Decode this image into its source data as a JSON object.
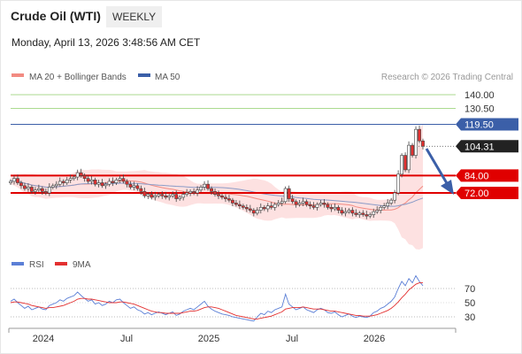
{
  "header": {
    "title": "Crude Oil (WTI)",
    "period": "WEEKLY",
    "timestamp": "Monday, April 13, 2026 3:48:56 AM CET"
  },
  "legend": {
    "items": [
      {
        "name": "MA 20 + Bollinger Bands",
        "color": "#f28b82"
      },
      {
        "name": "MA 50",
        "color": "#3b5fa8"
      }
    ],
    "credit": "Research © 2026 Trading Central"
  },
  "rsi_legend": {
    "items": [
      {
        "name": "RSI",
        "color": "#5b7fd6"
      },
      {
        "name": "9MA",
        "color": "#e33030"
      }
    ]
  },
  "colors": {
    "up_candle": "#ffffff",
    "down_candle": "#e33030",
    "candle_outline": "#444444",
    "bollinger_fill": "#fde1e1",
    "ma20": "#f28b82",
    "ma50": "#8a9bc7",
    "resistance_line": "#3b5fa8",
    "support_line": "#e00000",
    "target_line": "#8fce6a",
    "arrow": "#3b5fa8"
  },
  "chart_data": [
    {
      "type": "candlestick",
      "title": "",
      "x_labels": [
        "2024",
        "Jul",
        "2025",
        "Jul",
        "2026"
      ],
      "ylim": [
        40,
        150
      ],
      "levels": [
        {
          "value": 140.0,
          "label": "140.00",
          "style": "target"
        },
        {
          "value": 130.5,
          "label": "130.50",
          "style": "target"
        },
        {
          "value": 119.5,
          "label": "119.50",
          "style": "resistance"
        },
        {
          "value": 104.31,
          "label": "104.31",
          "style": "last"
        },
        {
          "value": 84.0,
          "label": "84.00",
          "style": "support"
        },
        {
          "value": 72.0,
          "label": "72.00",
          "style": "support"
        }
      ],
      "close": [
        80,
        82,
        79,
        77,
        75,
        76,
        73,
        74,
        75,
        73,
        72,
        76,
        77,
        78,
        80,
        79,
        81,
        82,
        83,
        86,
        84,
        82,
        80,
        81,
        78,
        79,
        77,
        78,
        80,
        79,
        81,
        82,
        80,
        78,
        76,
        77,
        75,
        73,
        70,
        71,
        69,
        70,
        71,
        70,
        69,
        70,
        71,
        68,
        69,
        71,
        72,
        73,
        72,
        74,
        76,
        78,
        75,
        73,
        71,
        70,
        69,
        68,
        67,
        65,
        64,
        63,
        62,
        61,
        60,
        58,
        60,
        62,
        61,
        63,
        62,
        64,
        65,
        66,
        75,
        68,
        66,
        64,
        65,
        66,
        64,
        63,
        62,
        64,
        65,
        64,
        62,
        61,
        62,
        60,
        58,
        59,
        60,
        58,
        57,
        58,
        57,
        56,
        57,
        59,
        60,
        62,
        63,
        65,
        67,
        72,
        85,
        98,
        88,
        105,
        98,
        116,
        108,
        104.31
      ],
      "rsi": {
        "ticks": [
          70,
          50,
          30
        ],
        "ylim": [
          20,
          90
        ],
        "rsi": [
          52,
          55,
          50,
          46,
          42,
          45,
          40,
          42,
          44,
          41,
          40,
          46,
          48,
          50,
          54,
          52,
          56,
          58,
          60,
          65,
          60,
          56,
          52,
          54,
          48,
          50,
          46,
          48,
          52,
          50,
          54,
          55,
          50,
          46,
          42,
          44,
          40,
          38,
          34,
          36,
          33,
          35,
          37,
          35,
          33,
          35,
          37,
          32,
          34,
          38,
          40,
          42,
          40,
          44,
          48,
          52,
          45,
          41,
          38,
          36,
          34,
          33,
          32,
          30,
          29,
          28,
          27,
          26,
          25,
          24,
          30,
          35,
          33,
          38,
          36,
          40,
          42,
          44,
          62,
          48,
          44,
          40,
          42,
          44,
          40,
          38,
          36,
          40,
          42,
          40,
          36,
          35,
          37,
          33,
          30,
          32,
          34,
          31,
          29,
          31,
          30,
          29,
          31,
          36,
          38,
          42,
          44,
          48,
          52,
          58,
          70,
          80,
          74,
          84,
          78,
          88,
          80,
          74
        ],
        "ma9": [
          50,
          51,
          51,
          50,
          49,
          48,
          46,
          45,
          44,
          43,
          42,
          43,
          43,
          44,
          45,
          46,
          48,
          50,
          52,
          55,
          56,
          56,
          55,
          55,
          54,
          53,
          52,
          51,
          50,
          50,
          50,
          51,
          51,
          50,
          49,
          48,
          46,
          44,
          42,
          40,
          38,
          37,
          36,
          36,
          35,
          35,
          35,
          35,
          35,
          36,
          37,
          38,
          38,
          39,
          41,
          43,
          44,
          44,
          43,
          42,
          40,
          38,
          36,
          34,
          32,
          31,
          30,
          29,
          28,
          27,
          27,
          28,
          29,
          30,
          31,
          33,
          35,
          37,
          41,
          42,
          43,
          43,
          43,
          44,
          43,
          42,
          41,
          41,
          41,
          40,
          39,
          38,
          38,
          37,
          36,
          35,
          34,
          33,
          32,
          32,
          31,
          31,
          31,
          32,
          33,
          35,
          37,
          39,
          42,
          46,
          51,
          57,
          62,
          68,
          72,
          76,
          78,
          78
        ]
      }
    }
  ]
}
